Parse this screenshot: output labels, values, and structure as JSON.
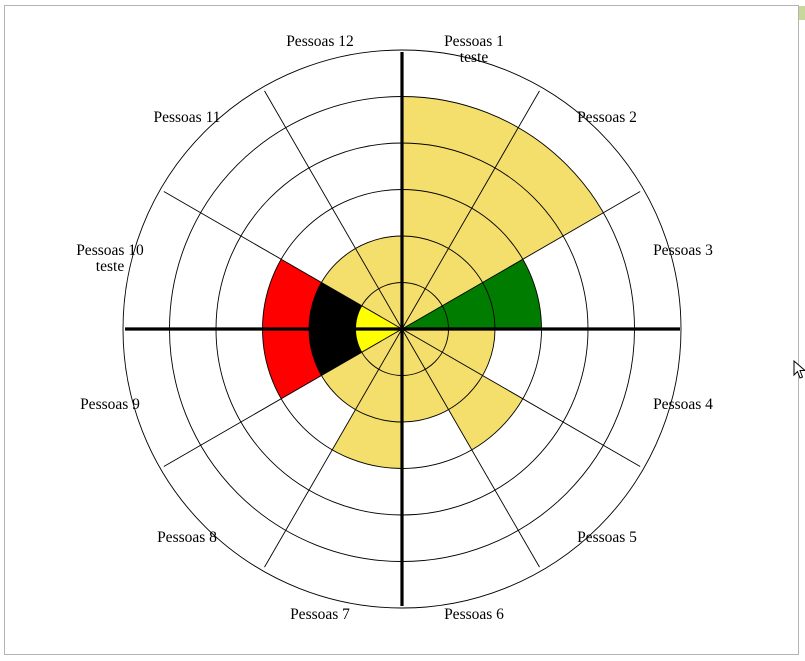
{
  "chart_data": {
    "type": "polar-area",
    "rings": 6,
    "categories": [
      "Pessoas 1 teste",
      "Pessoas 2",
      "Pessoas 3",
      "Pessoas 4",
      "Pessoas 5",
      "Pessoas 6",
      "Pessoas 7",
      "Pessoas 8",
      "Pessoas 9",
      "Pessoas 10 teste",
      "Pessoas 11",
      "Pessoas 12"
    ],
    "labels": [
      [
        "Pessoas 1",
        "teste"
      ],
      [
        "Pessoas 2"
      ],
      [
        "Pessoas 3"
      ],
      [
        "Pessoas 4"
      ],
      [
        "Pessoas 5"
      ],
      [
        "Pessoas 6"
      ],
      [
        "Pessoas 7"
      ],
      [
        "Pessoas 8"
      ],
      [
        "Pessoas 9"
      ],
      [
        "Pessoas 10",
        "teste"
      ],
      [
        "Pessoas 11"
      ],
      [
        "Pessoas 12"
      ]
    ],
    "bands": [
      [
        {
          "from": 0,
          "to": 5,
          "color": "#f4de6c"
        }
      ],
      [
        {
          "from": 0,
          "to": 5,
          "color": "#f4de6c"
        }
      ],
      [
        {
          "from": 0,
          "to": 3,
          "color": "#007d00"
        }
      ],
      [
        {
          "from": 0,
          "to": 2,
          "color": "#f4de6c"
        }
      ],
      [
        {
          "from": 0,
          "to": 3,
          "color": "#f4de6c"
        }
      ],
      [
        {
          "from": 0,
          "to": 2,
          "color": "#f4de6c"
        }
      ],
      [
        {
          "from": 0,
          "to": 3,
          "color": "#f4de6c"
        }
      ],
      [
        {
          "from": 0,
          "to": 2,
          "color": "#f4de6c"
        }
      ],
      [
        {
          "from": 0,
          "to": 1,
          "color": "#ffff00"
        },
        {
          "from": 1,
          "to": 2,
          "color": "#000000"
        },
        {
          "from": 2,
          "to": 3,
          "color": "#ff0000"
        }
      ],
      [
        {
          "from": 0,
          "to": 1,
          "color": "#ffff00"
        },
        {
          "from": 1,
          "to": 2,
          "color": "#000000"
        },
        {
          "from": 2,
          "to": 3,
          "color": "#ff0000"
        }
      ],
      [
        {
          "from": 0,
          "to": 2,
          "color": "#f4de6c"
        }
      ],
      [
        {
          "from": 0,
          "to": 2,
          "color": "#f4de6c"
        }
      ]
    ],
    "colors": {
      "yellow_fill": "#f4de6c",
      "green": "#007d00",
      "bright_yellow": "#ffff00",
      "black": "#000000",
      "red": "#ff0000"
    }
  }
}
